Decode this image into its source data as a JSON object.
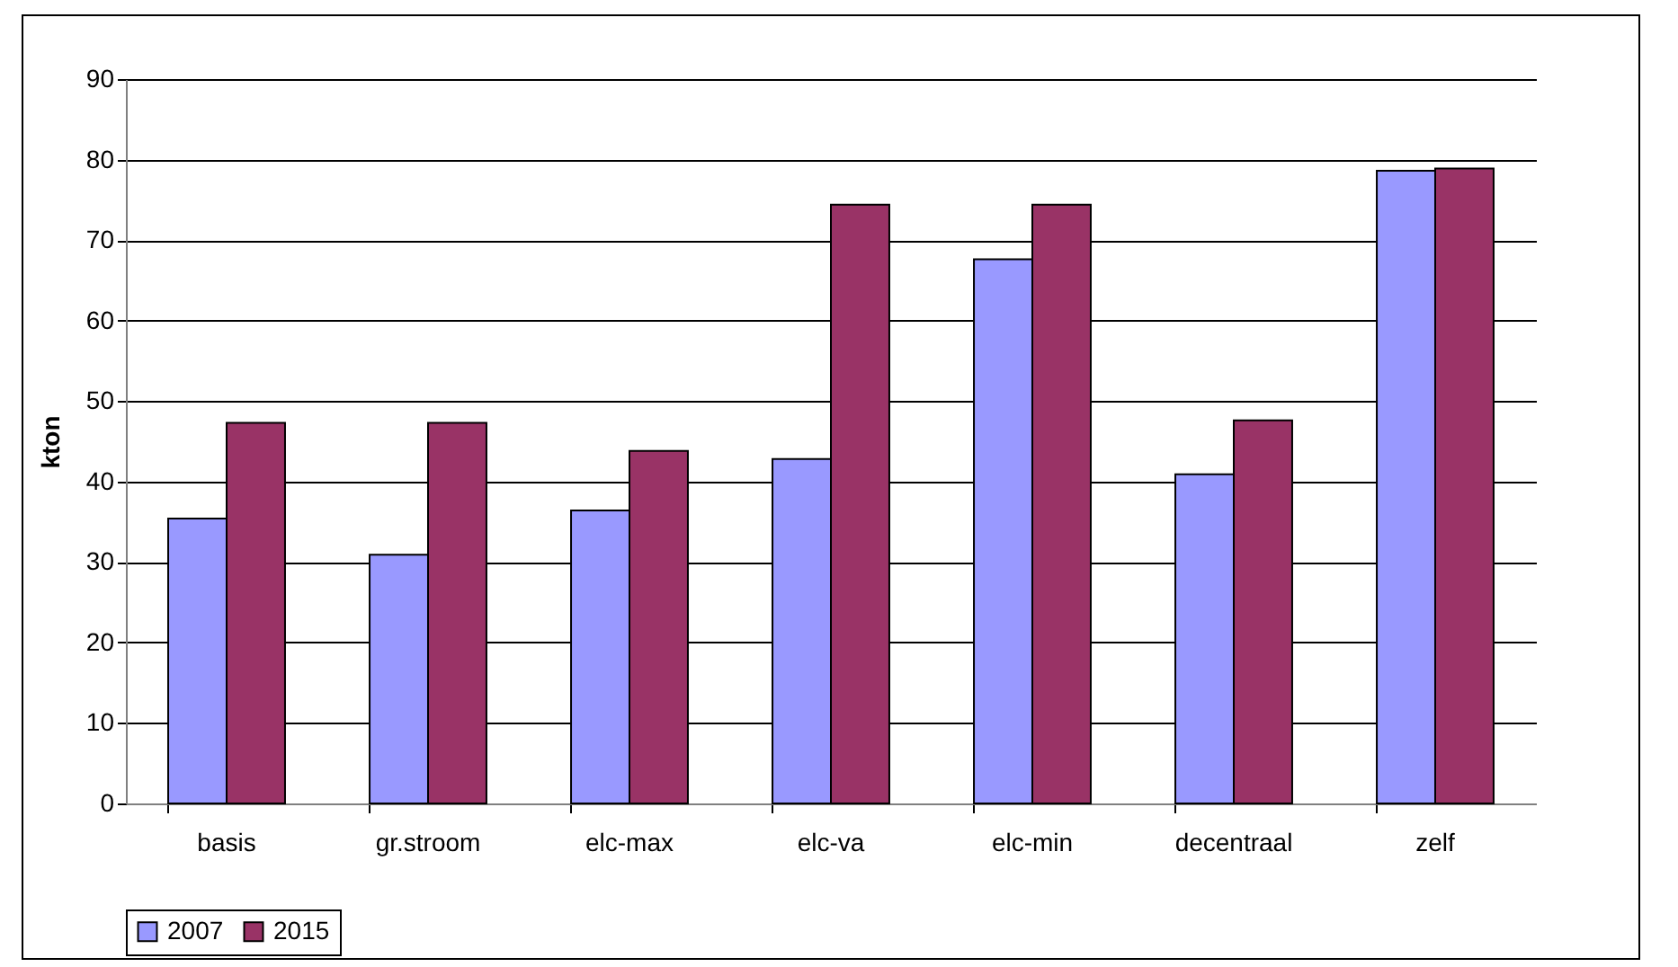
{
  "chart_data": {
    "type": "bar",
    "ylabel": "kton",
    "categories": [
      "basis",
      "gr.stroom",
      "elc-max",
      "elc-va",
      "elc-min",
      "decentraal",
      "zelf"
    ],
    "series": [
      {
        "name": "2007",
        "color": "#9999ff",
        "values": [
          35.4,
          30.9,
          36.4,
          42.8,
          67.6,
          40.9,
          78.6
        ]
      },
      {
        "name": "2015",
        "color": "#993366",
        "values": [
          47.3,
          47.3,
          43.8,
          74.4,
          74.4,
          47.6,
          78.9
        ]
      }
    ],
    "ylim": [
      0,
      90
    ],
    "yticks": [
      0,
      10,
      20,
      30,
      40,
      50,
      60,
      70,
      80,
      90
    ],
    "grid": "y",
    "legend": "bottom"
  }
}
